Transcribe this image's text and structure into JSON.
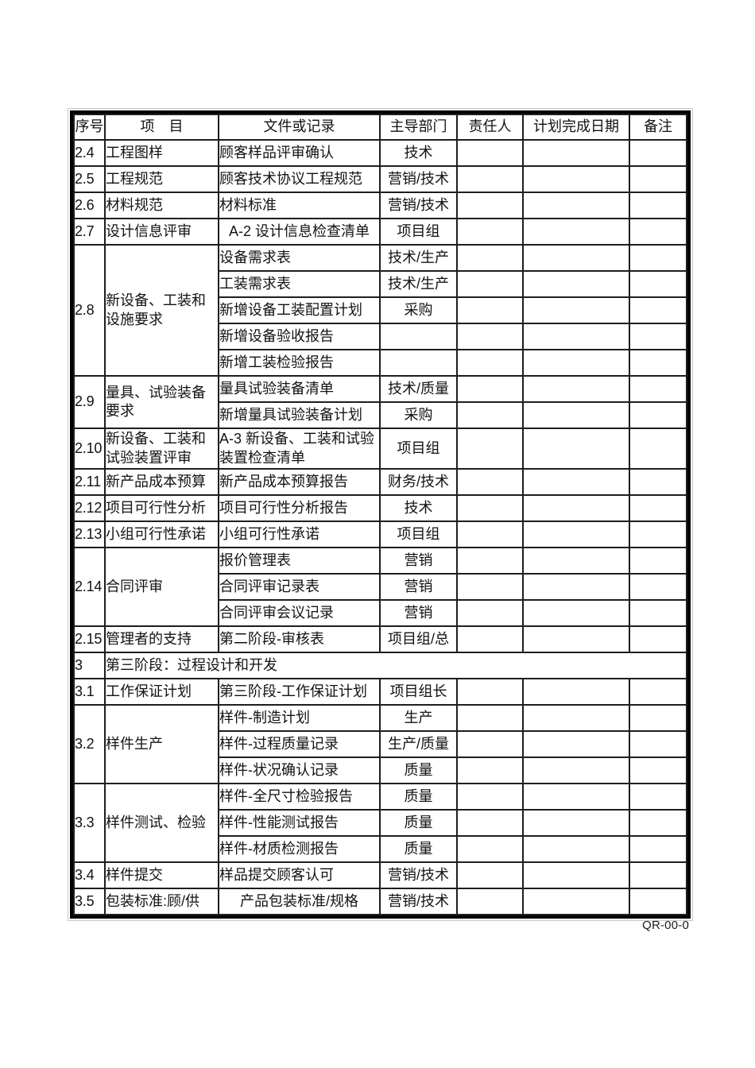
{
  "page": {
    "footer_code": "QR-00-0"
  },
  "table": {
    "headers": [
      "序号",
      "项　目",
      "文件或记录",
      "主导部门",
      "责任人",
      "计划完成日期",
      "备注"
    ],
    "rows": [
      {
        "no": "2.4",
        "item": "工程图样",
        "docs": [
          {
            "doc": "顾客样品评审确认",
            "dept": "技术"
          }
        ]
      },
      {
        "no": "2.5",
        "item": "工程规范",
        "docs": [
          {
            "doc": "顾客技术协议工程规范",
            "dept": "营销/技术"
          }
        ]
      },
      {
        "no": "2.6",
        "item": "材料规范",
        "docs": [
          {
            "doc": "材料标准",
            "dept": "营销/技术"
          }
        ]
      },
      {
        "no": "2.7",
        "item": "设计信息评审",
        "docs": [
          {
            "doc": "A-2 设计信息检查清单",
            "dept": "项目组",
            "align": "center"
          }
        ]
      },
      {
        "no": "2.8",
        "item": "新设备、工装和设施要求",
        "docs": [
          {
            "doc": "设备需求表",
            "dept": "技术/生产"
          },
          {
            "doc": "工装需求表",
            "dept": "技术/生产"
          },
          {
            "doc": "新增设备工装配置计划",
            "dept": "采购"
          },
          {
            "doc": "新增设备验收报告",
            "dept": ""
          },
          {
            "doc": "新增工装检验报告",
            "dept": ""
          }
        ]
      },
      {
        "no": "2.9",
        "item": "量具、试验装备要求",
        "docs": [
          {
            "doc": "量具试验装备清单",
            "dept": "技术/质量"
          },
          {
            "doc": "新增量具试验装备计划",
            "dept": "采购"
          }
        ]
      },
      {
        "no": "2.10",
        "item": "新设备、工装和试验装置评审",
        "tall": true,
        "docs": [
          {
            "doc": "A-3 新设备、工装和试验装置检查清单",
            "dept": "项目组"
          }
        ]
      },
      {
        "no": "2.11",
        "item": "新产品成本预算",
        "docs": [
          {
            "doc": "新产品成本预算报告",
            "dept": "财务/技术"
          }
        ]
      },
      {
        "no": "2.12",
        "item": "项目可行性分析",
        "docs": [
          {
            "doc": "项目可行性分析报告",
            "dept": "技术"
          }
        ]
      },
      {
        "no": "2.13",
        "item": "小组可行性承诺",
        "docs": [
          {
            "doc": "小组可行性承诺",
            "dept": "项目组"
          }
        ]
      },
      {
        "no": "2.14",
        "item": "合同评审",
        "docs": [
          {
            "doc": "报价管理表",
            "dept": "营销"
          },
          {
            "doc": "合同评审记录表",
            "dept": "营销"
          },
          {
            "doc": "合同评审会议记录",
            "dept": "营销"
          }
        ]
      },
      {
        "no": "2.15",
        "item": "管理者的支持",
        "docs": [
          {
            "doc": "第二阶段-审核表",
            "dept": "项目组/总"
          }
        ]
      },
      {
        "no": "3",
        "item": "第三阶段：过程设计和开发",
        "section": true
      },
      {
        "no": "3.1",
        "item": "工作保证计划",
        "docs": [
          {
            "doc": "第三阶段-工作保证计划",
            "dept": "项目组长"
          }
        ]
      },
      {
        "no": "3.2",
        "item": "样件生产",
        "docs": [
          {
            "doc": "样件-制造计划",
            "dept": "生产"
          },
          {
            "doc": "样件-过程质量记录",
            "dept": "生产/质量"
          },
          {
            "doc": "样件-状况确认记录",
            "dept": "质量"
          }
        ]
      },
      {
        "no": "3.3",
        "item": "样件测试、检验",
        "docs": [
          {
            "doc": "样件-全尺寸检验报告",
            "dept": "质量"
          },
          {
            "doc": "样件-性能测试报告",
            "dept": "质量"
          },
          {
            "doc": "样件-材质检测报告",
            "dept": "质量"
          }
        ]
      },
      {
        "no": "3.4",
        "item": "样件提交",
        "docs": [
          {
            "doc": "样品提交顾客认可",
            "dept": "营销/技术"
          }
        ]
      },
      {
        "no": "3.5",
        "item": "包装标准:顾/供",
        "docs": [
          {
            "doc": "产品包装标准/规格",
            "dept": "营销/技术",
            "align": "center"
          }
        ]
      }
    ]
  }
}
